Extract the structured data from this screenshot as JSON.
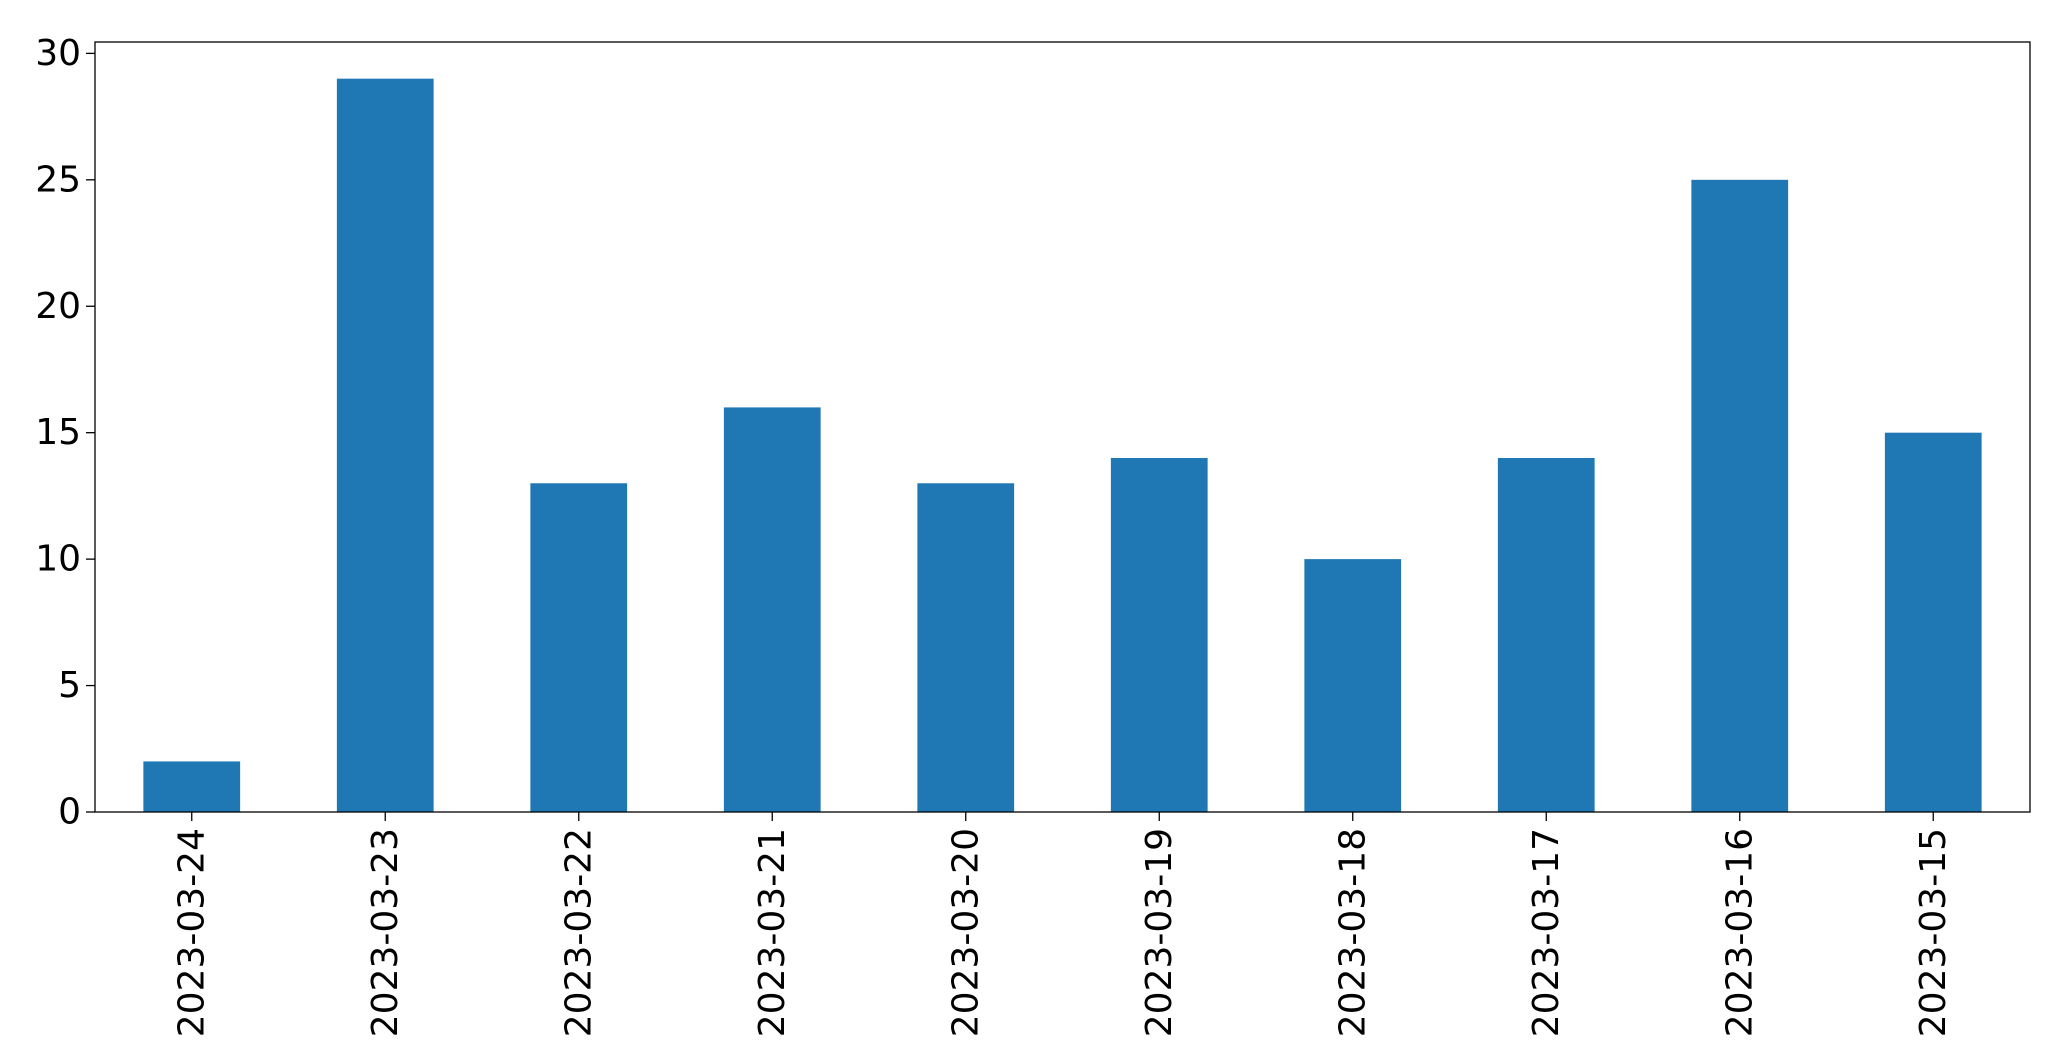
{
  "chart_data": {
    "type": "bar",
    "categories": [
      "2023-03-24",
      "2023-03-23",
      "2023-03-22",
      "2023-03-21",
      "2023-03-20",
      "2023-03-19",
      "2023-03-18",
      "2023-03-17",
      "2023-03-16",
      "2023-03-15"
    ],
    "values": [
      2,
      29,
      13,
      16,
      13,
      14,
      10,
      14,
      25,
      15
    ],
    "color": "#1f77b4",
    "ylim": [
      0,
      30.45
    ],
    "yticks": [
      0,
      5,
      10,
      15,
      20,
      25,
      30
    ],
    "grid": false
  }
}
